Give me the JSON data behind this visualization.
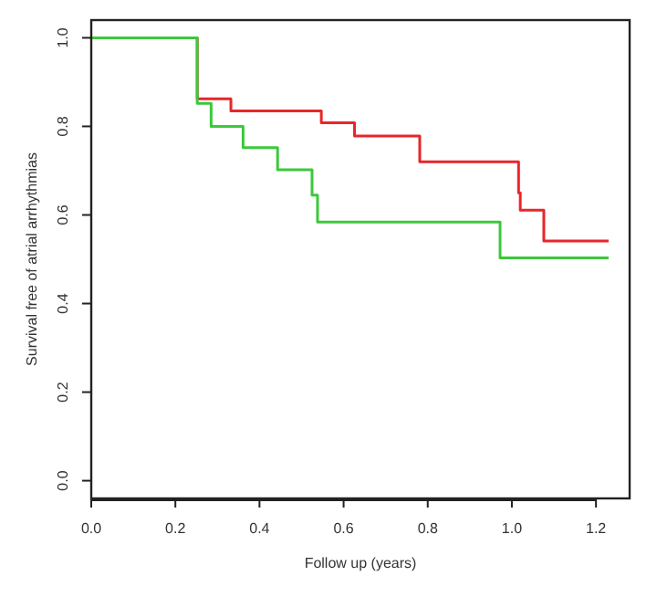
{
  "chart_data": {
    "type": "step",
    "xlabel": "Follow up (years)",
    "ylabel": "Survival free of atrial arrhythmias",
    "xlim": [
      0,
      1.28
    ],
    "ylim": [
      -0.04,
      1.04
    ],
    "xticks": [
      {
        "value": 0,
        "label": "0.0"
      },
      0.2,
      0.4,
      0.6,
      0.8,
      {
        "value": 1,
        "label": "1.0"
      },
      1.2
    ],
    "yticks": [
      {
        "value": 0,
        "label": "0.0"
      },
      0.2,
      0.4,
      0.6,
      0.8,
      {
        "value": 1,
        "label": "1.0"
      }
    ],
    "grid": false,
    "series": [
      {
        "color": "#e8262a",
        "x": [
          0,
          0.252,
          0.332,
          0.547,
          0.626,
          0.781,
          1.016,
          1.02,
          1.076,
          1.23
        ],
        "values": [
          1,
          0.862,
          0.835,
          0.808,
          0.778,
          0.72,
          0.65,
          0.611,
          0.541,
          0.541
        ]
      },
      {
        "color": "#3cc83c",
        "x": [
          0,
          0.252,
          0.285,
          0.361,
          0.443,
          0.525,
          0.538,
          0.972,
          1.23
        ],
        "values": [
          1,
          0.852,
          0.8,
          0.752,
          0.702,
          0.645,
          0.584,
          0.503,
          0.503
        ]
      }
    ]
  }
}
